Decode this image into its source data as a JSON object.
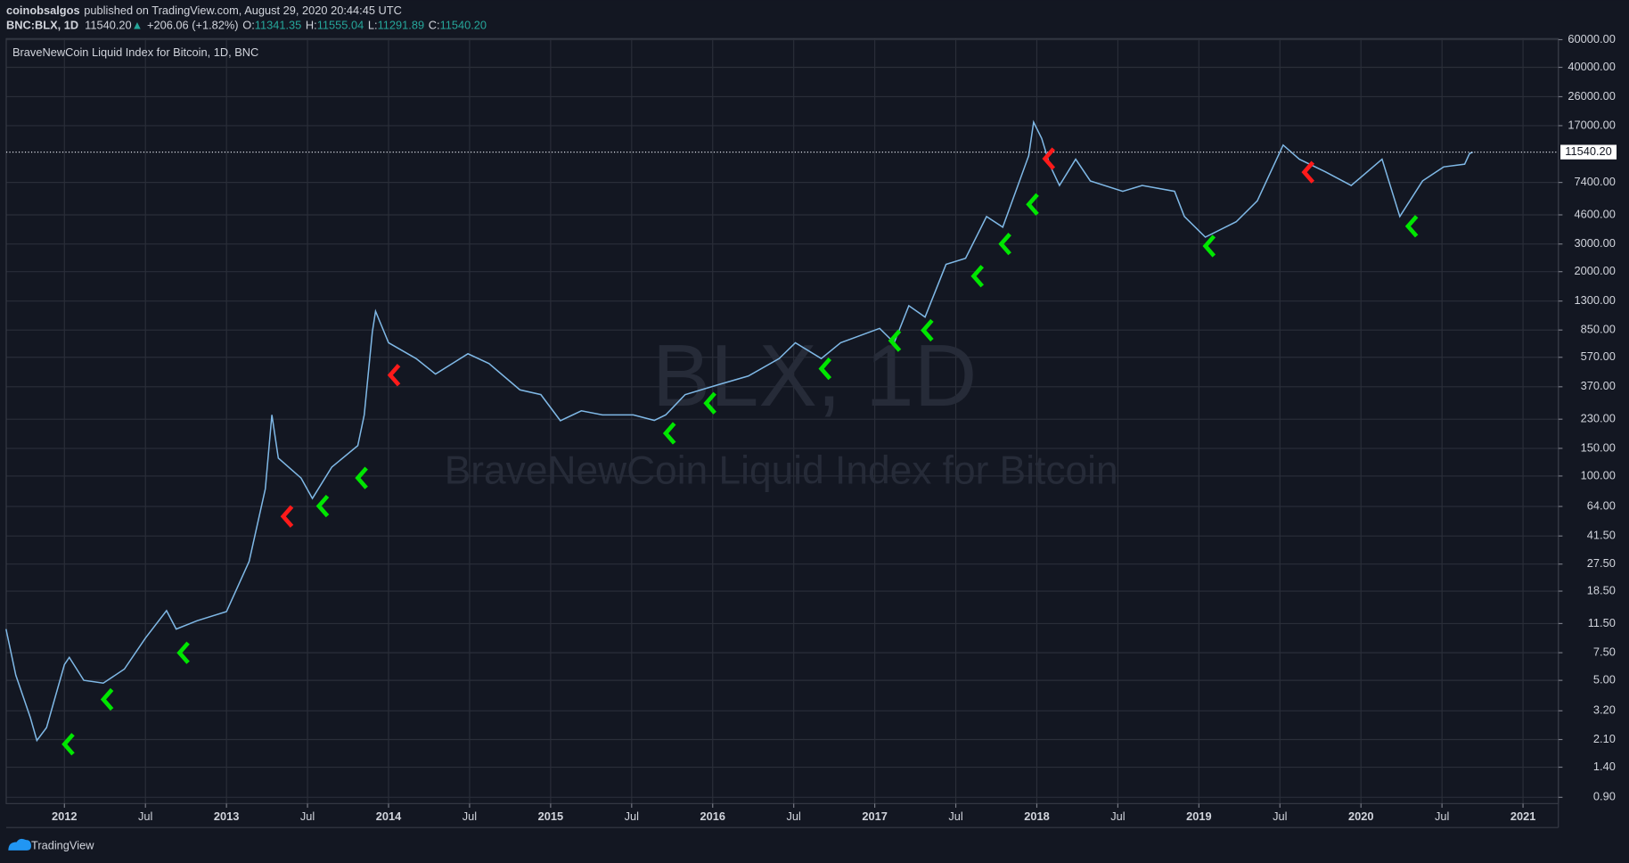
{
  "header": {
    "publisher": "coinobsalgos",
    "published": "published on TradingView.com, August 29, 2020 20:44:45 UTC",
    "symbol": "BNC:BLX, 1D",
    "price": "11540.20",
    "change_arrow": "▲",
    "change": "+206.06 (+1.82%)",
    "open_label": "O:",
    "open": "11341.35",
    "high_label": "H:",
    "high": "11555.04",
    "low_label": "L:",
    "low": "11291.89",
    "close_label": "C:",
    "close": "11540.20"
  },
  "footer": {
    "brand": "TradingView"
  },
  "chart_data": {
    "type": "line",
    "title": "BraveNewCoin Liquid Index for Bitcoin, 1D, BNC",
    "watermark_symbol": "BLX, 1D",
    "watermark_name": "BraveNewCoin Liquid Index for Bitcoin",
    "log_scale": true,
    "grid": true,
    "color": "#7fb8e6",
    "x": [
      2011.64,
      2011.7,
      2011.79,
      2011.83,
      2011.89,
      2012.0,
      2012.03,
      2012.12,
      2012.24,
      2012.37,
      2012.5,
      2012.63,
      2012.69,
      2012.82,
      2013.0,
      2013.14,
      2013.24,
      2013.28,
      2013.32,
      2013.46,
      2013.53,
      2013.65,
      2013.81,
      2013.85,
      2013.9,
      2013.92,
      2014.0,
      2014.17,
      2014.29,
      2014.49,
      2014.62,
      2014.81,
      2014.94,
      2015.06,
      2015.19,
      2015.32,
      2015.51,
      2015.64,
      2015.71,
      2015.83,
      2016.03,
      2016.22,
      2016.41,
      2016.51,
      2016.67,
      2016.79,
      2017.03,
      2017.12,
      2017.21,
      2017.31,
      2017.44,
      2017.56,
      2017.69,
      2017.79,
      2017.95,
      2017.98,
      2018.03,
      2018.08,
      2018.14,
      2018.24,
      2018.33,
      2018.53,
      2018.65,
      2018.85,
      2018.91,
      2019.04,
      2019.23,
      2019.36,
      2019.52,
      2019.62,
      2019.78,
      2019.94,
      2020.13,
      2020.24,
      2020.38,
      2020.51,
      2020.64,
      2020.67,
      2020.69
    ],
    "values": [
      10.6,
      5.4,
      2.9,
      2.07,
      2.5,
      6.3,
      7.0,
      5.0,
      4.8,
      5.9,
      9.3,
      13.9,
      10.6,
      12.0,
      13.7,
      28.6,
      83,
      245,
      130,
      97,
      72,
      114,
      156,
      245,
      827,
      1120,
      705,
      560,
      446,
      600,
      520,
      354,
      330,
      225,
      260,
      245,
      245,
      226,
      245,
      330,
      380,
      433,
      560,
      705,
      560,
      705,
      870,
      705,
      1214,
      1028,
      2224,
      2432,
      4489,
      3840,
      10950,
      17900,
      14100,
      9550,
      7080,
      10400,
      7570,
      6500,
      7080,
      6500,
      4490,
      3320,
      4160,
      5650,
      12800,
      10400,
      8650,
      7080,
      10400,
      4490,
      7570,
      9300,
      9670,
      11300,
      11540.2
    ],
    "buy_signals": {
      "color": "#00e600",
      "x": [
        2012.0,
        2012.24,
        2012.71,
        2013.57,
        2013.81,
        2015.71,
        2015.96,
        2016.67,
        2017.1,
        2017.3,
        2017.61,
        2017.78,
        2017.95,
        2019.04,
        2020.29
      ],
      "values": [
        1.96,
        3.78,
        7.49,
        64.4,
        97.1,
        187,
        291,
        482,
        727,
        847,
        1872,
        3002,
        5361,
        2912,
        3891
      ]
    },
    "sell_signals": {
      "color": "#ff1a1a",
      "x": [
        2013.35,
        2014.01,
        2018.05,
        2019.65
      ],
      "values": [
        55.3,
        439,
        10480,
        8595
      ]
    },
    "last_price": {
      "value": 11540.2,
      "label": "11540.20"
    },
    "xlim": [
      2011.641,
      2021.218
    ],
    "xticks": [
      2012,
      {
        "value": 2012.5,
        "label": "Jul"
      },
      2013,
      {
        "value": 2013.5,
        "label": "Jul"
      },
      2014,
      {
        "value": 2014.5,
        "label": "Jul"
      },
      2015,
      {
        "value": 2015.5,
        "label": "Jul"
      },
      2016,
      {
        "value": 2016.5,
        "label": "Jul"
      },
      2017,
      {
        "value": 2017.5,
        "label": "Jul"
      },
      2018,
      {
        "value": 2018.5,
        "label": "Jul"
      },
      2019,
      {
        "value": 2019.5,
        "label": "Jul"
      },
      2020,
      {
        "value": 2020.5,
        "label": "Jul"
      },
      2021
    ],
    "ylim": [
      0.821,
      60920
    ],
    "yticks": [
      {
        "value": 0.9,
        "label": "0.90"
      },
      {
        "value": 1.4,
        "label": "1.40"
      },
      {
        "value": 2.1,
        "label": "2.10"
      },
      {
        "value": 3.2,
        "label": "3.20"
      },
      {
        "value": 5,
        "label": "5.00"
      },
      {
        "value": 7.5,
        "label": "7.50"
      },
      {
        "value": 11.5,
        "label": "11.50"
      },
      {
        "value": 18.5,
        "label": "18.50"
      },
      {
        "value": 27.5,
        "label": "27.50"
      },
      {
        "value": 41.5,
        "label": "41.50"
      },
      {
        "value": 64,
        "label": "64.00"
      },
      {
        "value": 100,
        "label": "100.00"
      },
      {
        "value": 150,
        "label": "150.00"
      },
      {
        "value": 230,
        "label": "230.00"
      },
      {
        "value": 370,
        "label": "370.00"
      },
      {
        "value": 570,
        "label": "570.00"
      },
      {
        "value": 850,
        "label": "850.00"
      },
      {
        "value": 1300,
        "label": "1300.00"
      },
      {
        "value": 2000,
        "label": "2000.00"
      },
      {
        "value": 3000,
        "label": "3000.00"
      },
      {
        "value": 4600,
        "label": "4600.00"
      },
      {
        "value": 7400,
        "label": "7400.00"
      },
      {
        "value": 17000,
        "label": "17000.00"
      },
      {
        "value": 26000,
        "label": "26000.00"
      },
      {
        "value": 40000,
        "label": "40000.00"
      },
      {
        "value": 60000,
        "label": "60000.00"
      }
    ]
  }
}
